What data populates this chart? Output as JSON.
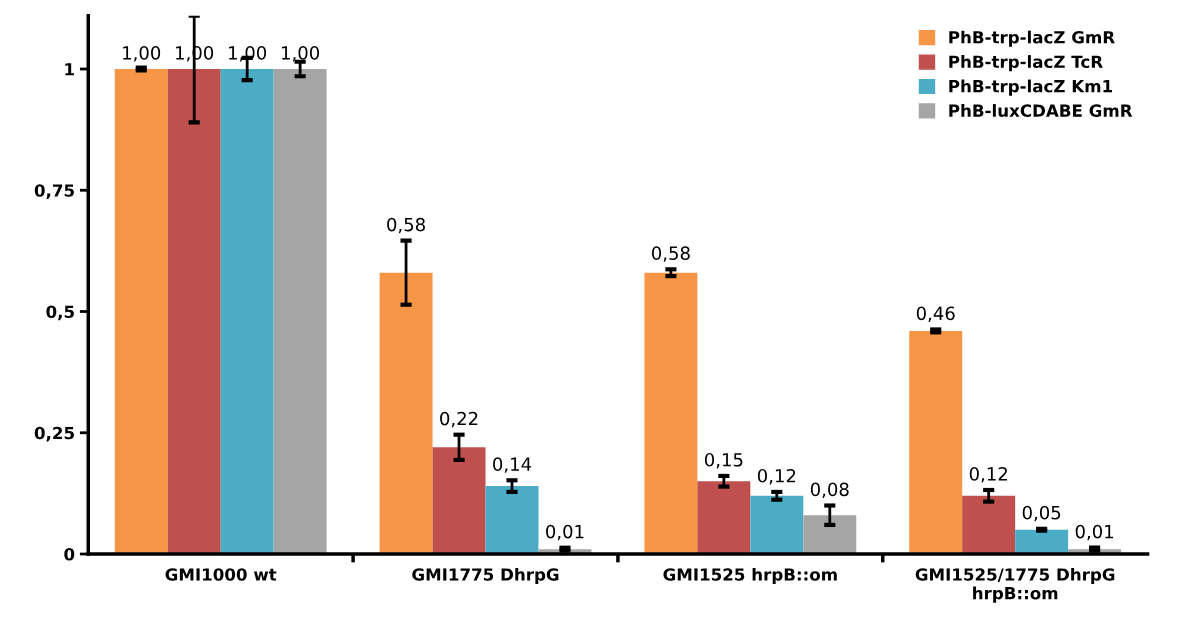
{
  "chart_data": {
    "type": "bar",
    "categories": [
      "GMI1000 wt",
      "GMI1775 DhrpG",
      "GMI1525 hrpB::om",
      "GMI1525/1775 DhrpG\nhrpB::om"
    ],
    "series": [
      {
        "name": "PhB-trp-lacZ GmR",
        "color": "#f79646",
        "values": [
          1.0,
          0.58,
          0.58,
          0.46
        ],
        "errors": [
          0.003,
          0.066,
          0.007,
          0.003
        ],
        "value_labels": [
          "1,00",
          "0,58",
          "0,58",
          "0,46"
        ]
      },
      {
        "name": "PhB-trp-lacZ TcR",
        "color": "#c0504d",
        "values": [
          1.0,
          0.22,
          0.15,
          0.12
        ],
        "errors": [
          0.11,
          0.026,
          0.011,
          0.012
        ],
        "value_labels": [
          "1,00",
          "0,22",
          "0,15",
          "0,12"
        ]
      },
      {
        "name": "PhB-trp-lacZ Km1",
        "color": "#4bacc6",
        "values": [
          1.0,
          0.14,
          0.12,
          0.05
        ],
        "errors": [
          0.023,
          0.012,
          0.008,
          0.002
        ],
        "value_labels": [
          "1,00",
          "0,14",
          "0,12",
          "0,05"
        ]
      },
      {
        "name": "PhB-luxCDABE GmR",
        "color": "#a5a5a5",
        "values": [
          1.0,
          0.01,
          0.08,
          0.01
        ],
        "errors": [
          0.015,
          0.003,
          0.02,
          0.003
        ],
        "value_labels": [
          "1,00",
          "0,01",
          "0,08",
          "0,01"
        ]
      }
    ],
    "ylim": [
      0,
      1.11
    ],
    "yticks": [
      0,
      {
        "value": 0.25,
        "label": "0,25"
      },
      {
        "value": 0.5,
        "label": "0,5"
      },
      {
        "value": 0.75,
        "label": "0,75"
      },
      1
    ],
    "grid": false,
    "legend": "top right"
  }
}
